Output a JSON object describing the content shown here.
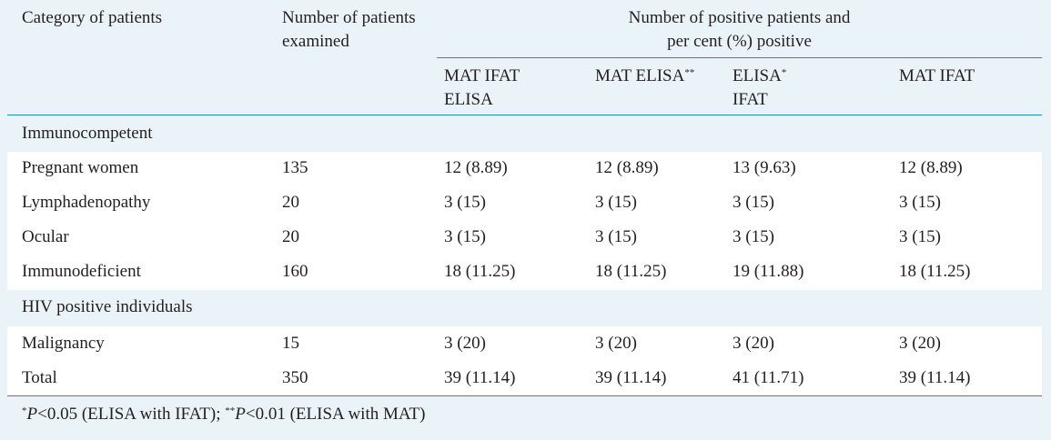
{
  "table": {
    "header": {
      "category": "Category of patients",
      "examined_line1": "Number of patients",
      "examined_line2": "examined",
      "positive_line1": "Number of positive patients and",
      "positive_line2": "per cent (%) positive",
      "sub1_line1": "MAT IFAT",
      "sub1_line2": "ELISA",
      "sub2_main": "MAT ELISA",
      "sub2_sup": "**",
      "sub3_main": "ELISA",
      "sub3_sup": "*",
      "sub3_line2": "IFAT",
      "sub4": "MAT IFAT"
    },
    "section1": "Immunocompetent",
    "section2": "HIV positive individuals",
    "rows": [
      {
        "category": "Pregnant women",
        "examined": "135",
        "c1": "12 (8.89)",
        "c2": "12 (8.89)",
        "c3": "13 (9.63)",
        "c4": "12 (8.89)"
      },
      {
        "category": "Lymphadenopathy",
        "examined": "20",
        "c1": "3 (15)",
        "c2": "3 (15)",
        "c3": "3 (15)",
        "c4": "3 (15)"
      },
      {
        "category": "Ocular",
        "examined": "20",
        "c1": "3 (15)",
        "c2": "3 (15)",
        "c3": "3 (15)",
        "c4": "3 (15)"
      },
      {
        "category": "Immunodeficient",
        "examined": "160",
        "c1": "18 (11.25)",
        "c2": "18 (11.25)",
        "c3": "19 (11.88)",
        "c4": "18 (11.25)"
      },
      {
        "category": "Malignancy",
        "examined": "15",
        "c1": "3 (20)",
        "c2": "3 (20)",
        "c3": "3 (20)",
        "c4": "3 (20)"
      },
      {
        "category": "Total",
        "examined": "350",
        "c1": "39 (11.14)",
        "c2": "39 (11.14)",
        "c3": "41 (11.71)",
        "c4": "39 (11.14)"
      }
    ],
    "footnote": {
      "star1": "*",
      "p1": "P",
      "text1": "<0.05 (ELISA with IFAT); ",
      "star2": "**",
      "p2": "P",
      "text2": "<0.01 (ELISA with MAT)"
    }
  }
}
